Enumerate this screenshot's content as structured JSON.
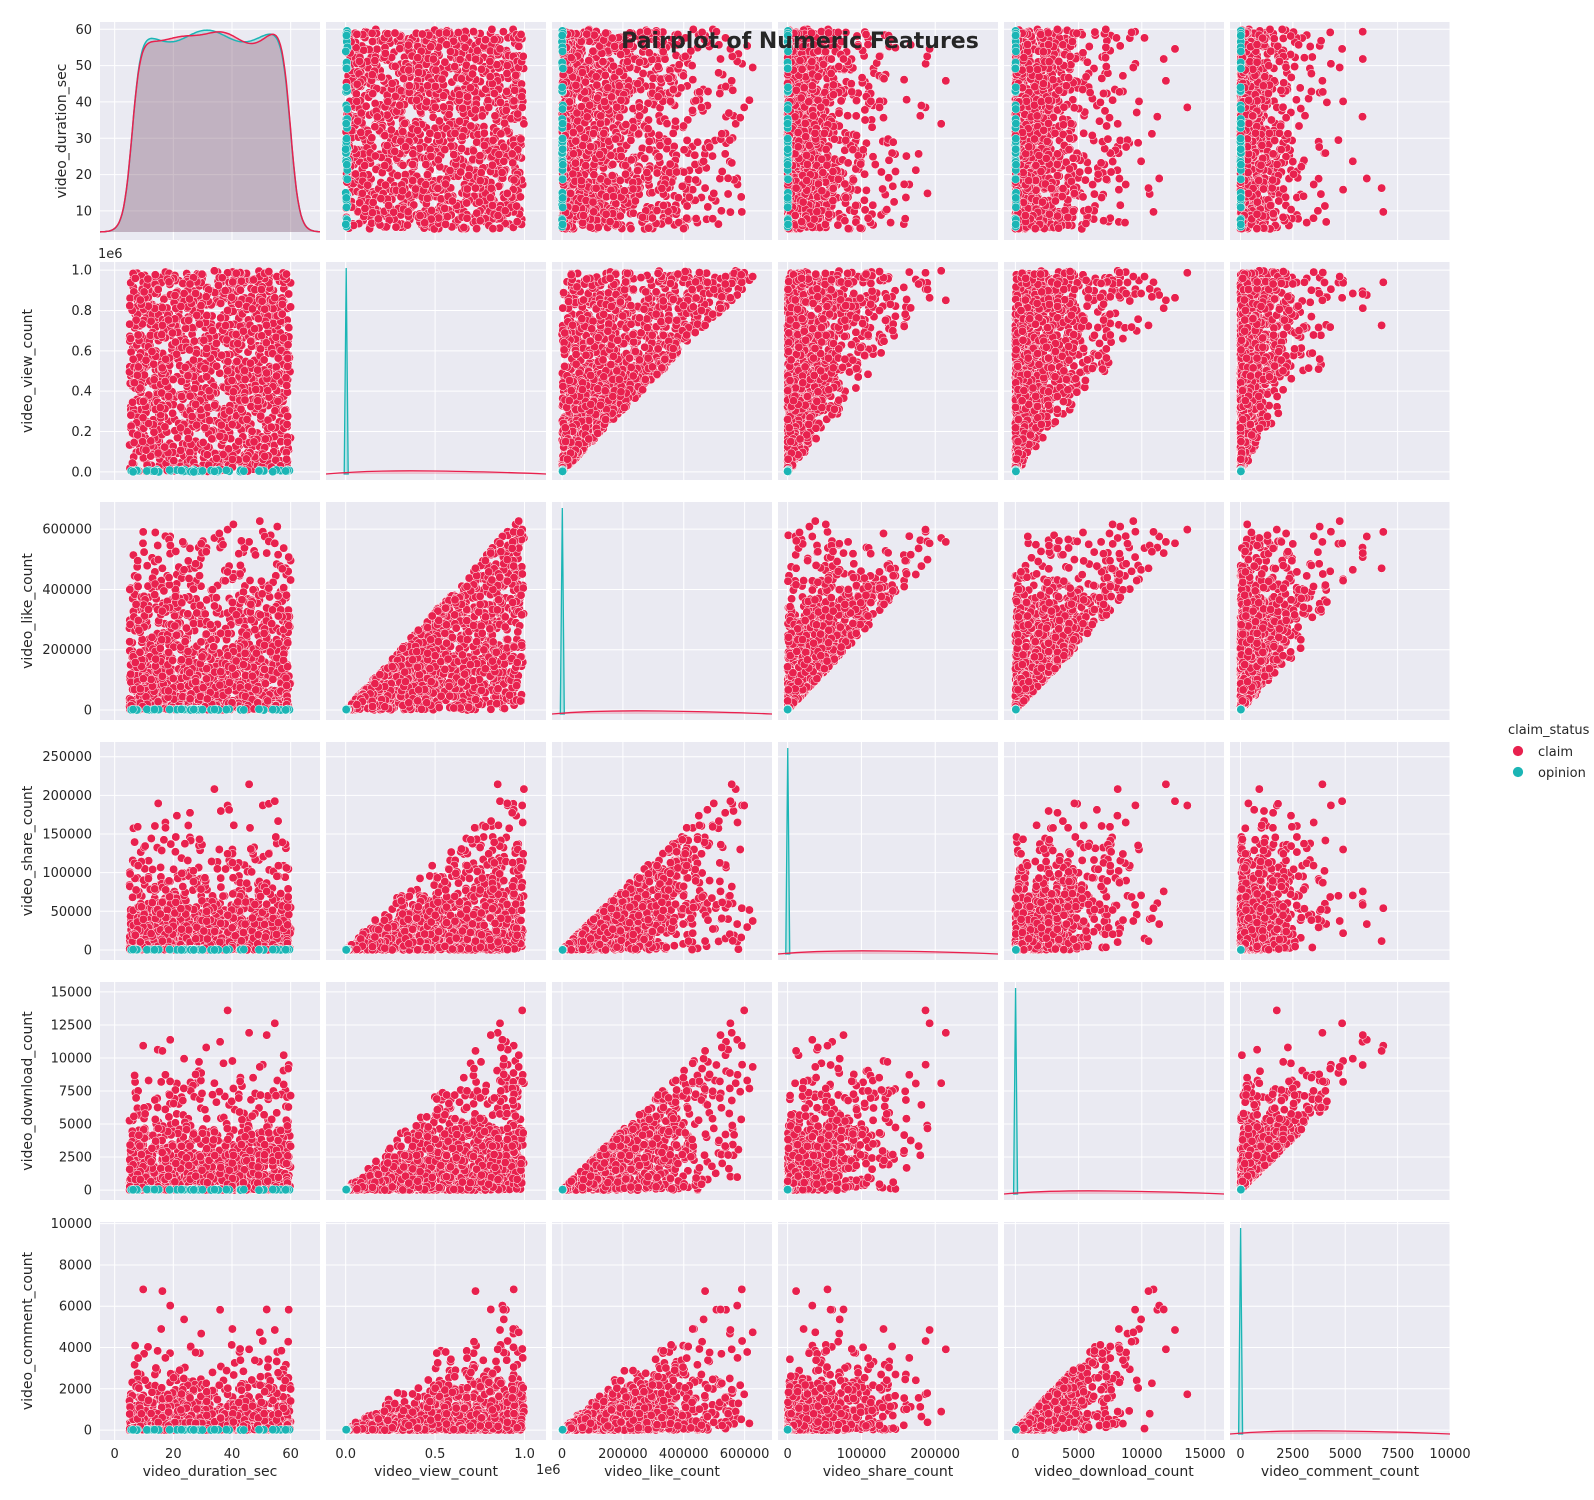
{
  "chart_data": {
    "type": "scatter",
    "kind": "pairplot",
    "title": "Pairplot of Numeric Features",
    "hue": "claim_status",
    "legend": {
      "title": "claim_status",
      "placement": "right",
      "entries": [
        {
          "name": "claim",
          "color": "#e8214e"
        },
        {
          "name": "opinion",
          "color": "#1bb5b5"
        }
      ]
    },
    "colors": {
      "claim": "#e8214e",
      "opinion": "#1bb5b5",
      "panel_bg": "#eaeaf2",
      "grid": "#ffffff"
    },
    "grid": true,
    "variables": [
      {
        "name": "video_duration_sec",
        "range": [
          5,
          60
        ],
        "lim": [
          -5,
          70
        ],
        "ticks": [
          0,
          20,
          40,
          60
        ],
        "tick_labels": [
          "0",
          "20",
          "40",
          "60"
        ],
        "ylim": [
          2,
          62
        ],
        "yticks": [
          10,
          20,
          30,
          40,
          50,
          60
        ],
        "ytick_labels": [
          "10",
          "20",
          "30",
          "40",
          "50",
          "60"
        ],
        "offset_text": ""
      },
      {
        "name": "video_view_count",
        "range": [
          0,
          1000000
        ],
        "lim": [
          -110000,
          1120000
        ],
        "ticks": [
          0,
          500000,
          1000000
        ],
        "tick_labels": [
          "0.0",
          "0.5",
          "1.0"
        ],
        "ylim": [
          -40000,
          1040000
        ],
        "yticks": [
          0,
          200000,
          400000,
          600000,
          800000,
          1000000
        ],
        "ytick_labels": [
          "0.0",
          "0.2",
          "0.4",
          "0.6",
          "0.8",
          "1.0"
        ],
        "offset_text": "1e6"
      },
      {
        "name": "video_like_count",
        "range": [
          0,
          657000
        ],
        "lim": [
          -33000,
          690000
        ],
        "ticks": [
          0,
          200000,
          400000,
          600000
        ],
        "tick_labels": [
          "0",
          "200000",
          "400000",
          "600000"
        ],
        "ylim": [
          -33000,
          690000
        ],
        "yticks": [
          0,
          200000,
          400000,
          600000
        ],
        "ytick_labels": [
          "0",
          "200000",
          "400000",
          "600000"
        ],
        "offset_text": ""
      },
      {
        "name": "video_share_count",
        "range": [
          0,
          256000
        ],
        "lim": [
          -13000,
          285000
        ],
        "ticks": [
          0,
          100000,
          200000
        ],
        "tick_labels": [
          "0",
          "100000",
          "200000"
        ],
        "ylim": [
          -13000,
          269000
        ],
        "yticks": [
          0,
          50000,
          100000,
          150000,
          200000,
          250000
        ],
        "ytick_labels": [
          "0",
          "50000",
          "100000",
          "150000",
          "200000",
          "250000"
        ],
        "offset_text": ""
      },
      {
        "name": "video_download_count",
        "range": [
          0,
          15000
        ],
        "lim": [
          -900,
          16500
        ],
        "ticks": [
          0,
          5000,
          10000,
          15000
        ],
        "tick_labels": [
          "0",
          "5000",
          "10000",
          "15000"
        ],
        "ylim": [
          -750,
          15750
        ],
        "yticks": [
          0,
          2500,
          5000,
          7500,
          10000,
          12500,
          15000
        ],
        "ytick_labels": [
          "0",
          "2500",
          "5000",
          "7500",
          "10000",
          "12500",
          "15000"
        ],
        "offset_text": ""
      },
      {
        "name": "video_comment_count",
        "range": [
          0,
          9600
        ],
        "lim": [
          -500,
          10000
        ],
        "ticks": [
          0,
          2500,
          5000,
          7500,
          10000
        ],
        "tick_labels": [
          "0",
          "2500",
          "5000",
          "7500",
          "10000"
        ],
        "ylim": [
          -480,
          10080
        ],
        "yticks": [
          0,
          2000,
          4000,
          6000,
          8000,
          10000
        ],
        "ytick_labels": [
          "0",
          "2000",
          "4000",
          "6000",
          "8000",
          "10000"
        ],
        "offset_text": ""
      }
    ],
    "opinion_ranges": {
      "video_duration_sec": [
        5,
        60
      ],
      "video_view_count": [
        20,
        9999
      ],
      "video_like_count": [
        0,
        3000
      ],
      "video_share_count": [
        0,
        700
      ],
      "video_download_count": [
        0,
        50
      ],
      "video_comment_count": [
        0,
        20
      ]
    }
  }
}
